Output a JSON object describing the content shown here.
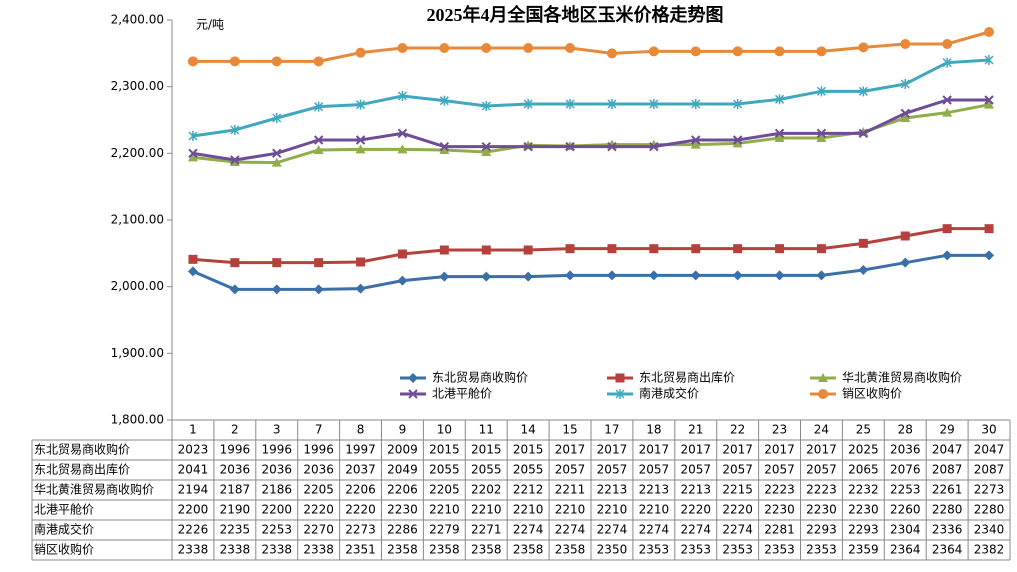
{
  "chart_data": {
    "type": "line",
    "title": "2025年4月全国各地区玉米价格走势图",
    "unit_label": "元/吨",
    "categories": [
      "1",
      "2",
      "3",
      "7",
      "8",
      "9",
      "10",
      "11",
      "14",
      "15",
      "17",
      "18",
      "21",
      "22",
      "23",
      "24",
      "25",
      "28",
      "29",
      "30"
    ],
    "ylim": [
      1800,
      2400
    ],
    "yticks": [
      {
        "value": 1800,
        "label": "1,800.00"
      },
      {
        "value": 1900,
        "label": "1,900.00"
      },
      {
        "value": 2000,
        "label": "2,000.00"
      },
      {
        "value": 2100,
        "label": "2,100.00"
      },
      {
        "value": 2200,
        "label": "2,200.00"
      },
      {
        "value": 2300,
        "label": "2,300.00"
      },
      {
        "value": 2400,
        "label": "2,400.00"
      }
    ],
    "grid": false,
    "legend": "bottom",
    "data_table": true,
    "series": [
      {
        "name": "东北贸易商收购价",
        "color": "#3a6fa8",
        "marker": "diamond",
        "values": [
          2023,
          1996,
          1996,
          1996,
          1997,
          2009,
          2015,
          2015,
          2015,
          2017,
          2017,
          2017,
          2017,
          2017,
          2017,
          2017,
          2025,
          2036,
          2047,
          2047
        ]
      },
      {
        "name": "东北贸易商出库价",
        "color": "#b5413c",
        "marker": "square",
        "values": [
          2041,
          2036,
          2036,
          2036,
          2037,
          2049,
          2055,
          2055,
          2055,
          2057,
          2057,
          2057,
          2057,
          2057,
          2057,
          2057,
          2065,
          2076,
          2087,
          2087
        ]
      },
      {
        "name": "华北黄淮贸易商收购价",
        "color": "#8fad4a",
        "marker": "triangle",
        "values": [
          2194,
          2187,
          2186,
          2205,
          2206,
          2206,
          2205,
          2202,
          2212,
          2211,
          2213,
          2213,
          2213,
          2215,
          2223,
          2223,
          2232,
          2253,
          2261,
          2273
        ]
      },
      {
        "name": "北港平舱价",
        "color": "#6e4c96",
        "marker": "x",
        "values": [
          2200,
          2190,
          2200,
          2220,
          2220,
          2230,
          2210,
          2210,
          2210,
          2210,
          2210,
          2210,
          2220,
          2220,
          2230,
          2230,
          2230,
          2260,
          2280,
          2280
        ]
      },
      {
        "name": "南港成交价",
        "color": "#3fa8bf",
        "marker": "star",
        "values": [
          2226,
          2235,
          2253,
          2270,
          2273,
          2286,
          2279,
          2271,
          2274,
          2274,
          2274,
          2274,
          2274,
          2274,
          2281,
          2293,
          2293,
          2304,
          2336,
          2340
        ]
      },
      {
        "name": "销区收购价",
        "color": "#e8893a",
        "marker": "circle",
        "values": [
          2338,
          2338,
          2338,
          2338,
          2351,
          2358,
          2358,
          2358,
          2358,
          2358,
          2350,
          2353,
          2353,
          2353,
          2353,
          2353,
          2359,
          2364,
          2364,
          2382
        ]
      }
    ]
  }
}
